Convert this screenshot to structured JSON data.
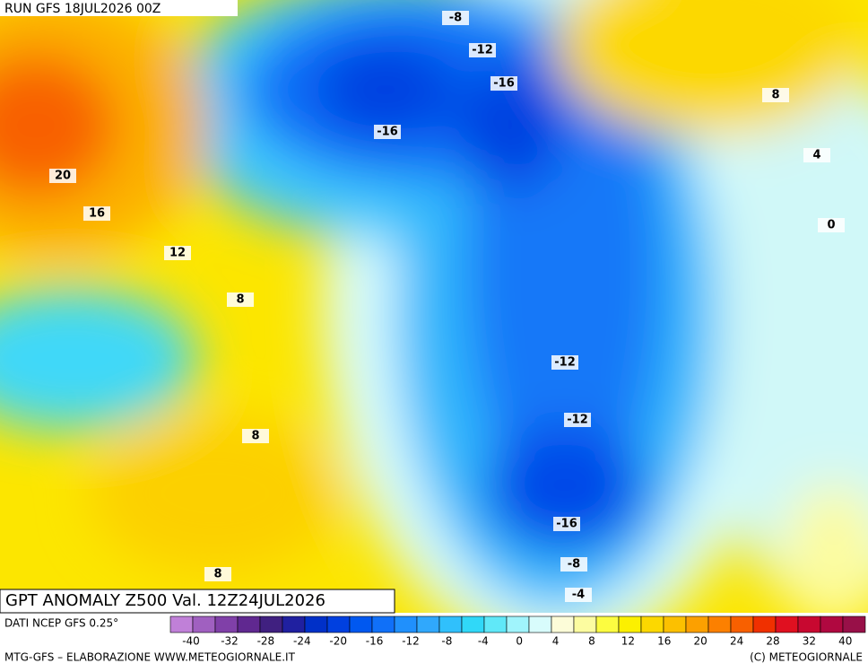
{
  "header": {
    "run": "RUN GFS 18JUL2026 00Z"
  },
  "map": {
    "contour_labels": [
      -8,
      -12,
      -16,
      -16,
      8,
      4,
      0,
      20,
      16,
      12,
      8,
      -12,
      -12,
      8,
      -16,
      -8,
      -4,
      8
    ]
  },
  "title": "GPT ANOMALY Z500 Val. 12Z24JUL2026",
  "legend": {
    "source": "DATI NCEP GFS 0.25°",
    "colors": [
      "#c080d8",
      "#a060c0",
      "#8040a8",
      "#602890",
      "#402080",
      "#2020a0",
      "#0030c8",
      "#0040e0",
      "#0058f0",
      "#1070f8",
      "#2090fc",
      "#30a8fc",
      "#30c0fc",
      "#30d8f8",
      "#60e8f8",
      "#a0f4fc",
      "#d8fcfc",
      "#fcfcd8",
      "#fcfca0",
      "#fcfc40",
      "#fcf000",
      "#fcd800",
      "#fcc000",
      "#fca000",
      "#fc8000",
      "#f86000",
      "#f03000",
      "#e01020",
      "#c80830",
      "#b00840",
      "#981048"
    ],
    "ticks": [
      -40,
      -32,
      -28,
      -24,
      -20,
      -16,
      -12,
      -8,
      -4,
      0,
      4,
      8,
      12,
      16,
      20,
      24,
      28,
      32,
      40
    ]
  },
  "footer": {
    "left": "MTG-GFS – ELABORAZIONE WWW.METEOGIORNALE.IT",
    "right": "(C) METEOGIORNALE"
  }
}
